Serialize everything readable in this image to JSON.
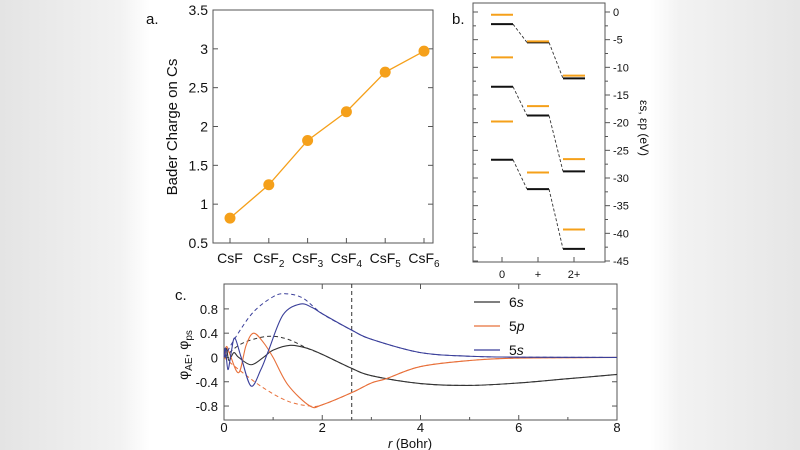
{
  "panel_labels": {
    "a": "a.",
    "b": "b.",
    "c": "c."
  },
  "chart_data": [
    {
      "id": "a",
      "type": "line",
      "ylabel": "Bader Charge on Cs",
      "xlabel": "",
      "categories": [
        "CsF",
        "CsF2",
        "CsF3",
        "CsF4",
        "CsF5",
        "CsF6"
      ],
      "values": [
        0.82,
        1.25,
        1.82,
        2.19,
        2.7,
        2.97
      ],
      "ylim": [
        0.5,
        3.5
      ],
      "yticks": [
        "0.5",
        "1",
        "1.5",
        "2",
        "2.5",
        "3",
        "3.5"
      ],
      "color": "#f5a01a",
      "marker": "circle",
      "grid": false
    },
    {
      "id": "b",
      "type": "energy-level",
      "ylabel": "εs, εp (eV)",
      "categories": [
        "0",
        "+",
        "2+"
      ],
      "ylim": [
        -45,
        1.6
      ],
      "yticks": [
        "0",
        "-5",
        "-10",
        "-15",
        "-20",
        "-25",
        "-30",
        "-35",
        "-40",
        "-45"
      ],
      "series": [
        {
          "color": "#111111",
          "levels": [
            [
              -2.2,
              -5.5,
              -12.0
            ],
            [
              -13.5,
              -18.7,
              -28.8
            ],
            [
              -26.7,
              -32.0,
              -42.8
            ]
          ],
          "connected": true
        },
        {
          "color": "#f5a01a",
          "levels": [
            [
              -0.5,
              -5.3,
              -11.5
            ],
            [
              -8.2,
              -17.0,
              -26.6
            ],
            [
              -19.8,
              -29.0,
              -39.3
            ]
          ],
          "connected": false
        }
      ]
    },
    {
      "id": "c",
      "type": "line",
      "xlabel": "r (Bohr)",
      "ylabel": "φAE, φps",
      "xlim": [
        0,
        8
      ],
      "ylim": [
        -1.03,
        1.21
      ],
      "xticks": [
        "0",
        "2",
        "4",
        "6",
        "8"
      ],
      "yticks": [
        "-0.8",
        "-0.4",
        "0",
        "0.4",
        "0.8"
      ],
      "vline": 2.6,
      "legend_position": "top-right",
      "series": [
        {
          "name": "6s",
          "color": "#333333",
          "ae": [
            [
              0,
              0
            ],
            [
              0.05,
              0.15
            ],
            [
              0.1,
              -0.05
            ],
            [
              0.2,
              0.08
            ],
            [
              0.3,
              0
            ],
            [
              0.55,
              -0.12
            ],
            [
              0.8,
              0
            ],
            [
              1.0,
              0.12
            ],
            [
              1.35,
              0.2
            ],
            [
              1.7,
              0.15
            ],
            [
              2,
              0.05
            ],
            [
              2.6,
              -0.18
            ],
            [
              3,
              -0.3
            ],
            [
              4,
              -0.43
            ],
            [
              5,
              -0.46
            ],
            [
              6,
              -0.42
            ],
            [
              7,
              -0.35
            ],
            [
              8,
              -0.28
            ]
          ],
          "ps": [
            [
              0,
              0
            ],
            [
              0.3,
              0.2
            ],
            [
              0.6,
              0.3
            ],
            [
              0.95,
              0.35
            ],
            [
              1.3,
              0.3
            ],
            [
              1.7,
              0.15
            ],
            [
              2,
              0.05
            ],
            [
              2.6,
              -0.18
            ],
            [
              3,
              -0.3
            ],
            [
              4,
              -0.43
            ],
            [
              5,
              -0.46
            ],
            [
              6,
              -0.42
            ],
            [
              7,
              -0.35
            ],
            [
              8,
              -0.28
            ]
          ]
        },
        {
          "name": "5p",
          "color": "#e8703a",
          "ae": [
            [
              0,
              0
            ],
            [
              0.05,
              0.18
            ],
            [
              0.12,
              0.05
            ],
            [
              0.3,
              -0.25
            ],
            [
              0.45,
              0.2
            ],
            [
              0.6,
              0.4
            ],
            [
              0.8,
              0.25
            ],
            [
              1,
              0
            ],
            [
              1.3,
              -0.45
            ],
            [
              1.75,
              -0.8
            ],
            [
              2,
              -0.78
            ],
            [
              2.6,
              -0.58
            ],
            [
              3,
              -0.42
            ],
            [
              3.3,
              -0.35
            ],
            [
              4,
              -0.15
            ],
            [
              5,
              -0.05
            ],
            [
              6,
              -0.01
            ],
            [
              8,
              0
            ]
          ],
          "ps": [
            [
              0,
              0
            ],
            [
              0.3,
              -0.2
            ],
            [
              0.8,
              -0.5
            ],
            [
              1.3,
              -0.72
            ],
            [
              1.75,
              -0.8
            ],
            [
              2,
              -0.78
            ],
            [
              2.6,
              -0.58
            ],
            [
              3,
              -0.42
            ],
            [
              3.3,
              -0.35
            ],
            [
              4,
              -0.15
            ],
            [
              5,
              -0.05
            ],
            [
              6,
              -0.01
            ],
            [
              8,
              0
            ]
          ]
        },
        {
          "name": "5s",
          "color": "#3a3f9a",
          "ae": [
            [
              0,
              0
            ],
            [
              0.03,
              0.15
            ],
            [
              0.08,
              -0.2
            ],
            [
              0.15,
              0.1
            ],
            [
              0.22,
              0.32
            ],
            [
              0.35,
              0
            ],
            [
              0.55,
              -0.47
            ],
            [
              0.75,
              -0.2
            ],
            [
              0.9,
              0.1
            ],
            [
              1.2,
              0.7
            ],
            [
              1.55,
              0.88
            ],
            [
              1.8,
              0.82
            ],
            [
              2,
              0.72
            ],
            [
              2.6,
              0.45
            ],
            [
              3,
              0.3
            ],
            [
              4,
              0.08
            ],
            [
              5,
              0.02
            ],
            [
              6,
              0.005
            ],
            [
              8,
              0
            ]
          ],
          "ps": [
            [
              0,
              0
            ],
            [
              0.25,
              0.35
            ],
            [
              0.6,
              0.75
            ],
            [
              1.0,
              1.0
            ],
            [
              1.25,
              1.05
            ],
            [
              1.6,
              0.98
            ],
            [
              2.0,
              0.72
            ],
            [
              2.6,
              0.45
            ],
            [
              3,
              0.3
            ],
            [
              4,
              0.08
            ],
            [
              5,
              0.02
            ],
            [
              6,
              0.005
            ],
            [
              8,
              0
            ]
          ]
        }
      ]
    }
  ]
}
